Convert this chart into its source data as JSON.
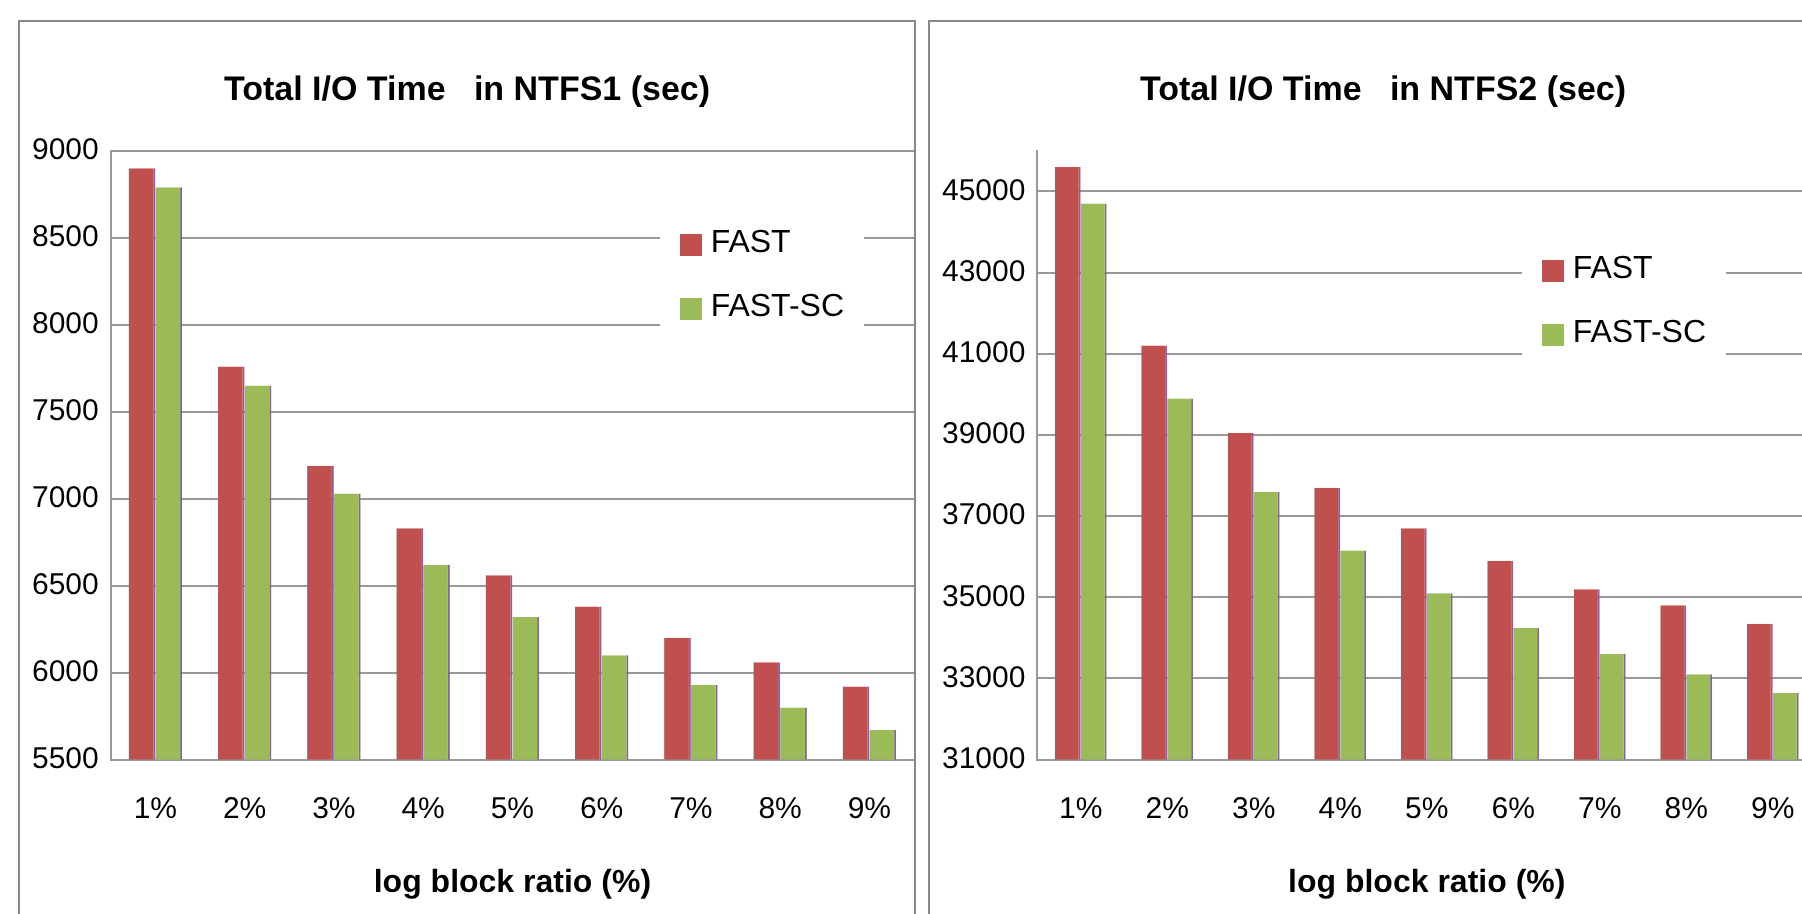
{
  "chart_data": [
    {
      "type": "bar",
      "title": "Total I/O Time   in NTFS1 (sec)",
      "xlabel": "log block ratio (%)",
      "categories": [
        "1%",
        "2%",
        "3%",
        "4%",
        "5%",
        "6%",
        "7%",
        "8%",
        "9%"
      ],
      "series": [
        {
          "name": "FAST",
          "color": "#c0504d",
          "values": [
            8900,
            7760,
            7190,
            6830,
            6560,
            6380,
            6200,
            6060,
            5920
          ]
        },
        {
          "name": "FAST-SC",
          "color": "#9bbb59",
          "values": [
            8790,
            7650,
            7030,
            6620,
            6320,
            6100,
            5930,
            5800,
            5670
          ]
        }
      ],
      "ylim": [
        5500,
        9000
      ],
      "yticks": [
        5500,
        6000,
        6500,
        7000,
        7500,
        8000,
        8500,
        9000
      ],
      "grid": "y",
      "legend": "top right"
    },
    {
      "type": "bar",
      "title": "Total I/O Time   in NTFS2 (sec)",
      "xlabel": "log block ratio (%)",
      "categories": [
        "1%",
        "2%",
        "3%",
        "4%",
        "5%",
        "6%",
        "7%",
        "8%",
        "9%"
      ],
      "series": [
        {
          "name": "FAST",
          "color": "#c0504d",
          "values": [
            45600,
            41200,
            39050,
            37700,
            36700,
            35900,
            35200,
            34800,
            34350
          ]
        },
        {
          "name": "FAST-SC",
          "color": "#9bbb59",
          "values": [
            44700,
            39900,
            37600,
            36150,
            35100,
            34250,
            33600,
            33100,
            32650
          ]
        }
      ],
      "ylim": [
        31000,
        46000
      ],
      "yticks": [
        31000,
        33000,
        35000,
        37000,
        39000,
        41000,
        43000,
        45000
      ],
      "grid": "y",
      "legend": "top right"
    }
  ]
}
